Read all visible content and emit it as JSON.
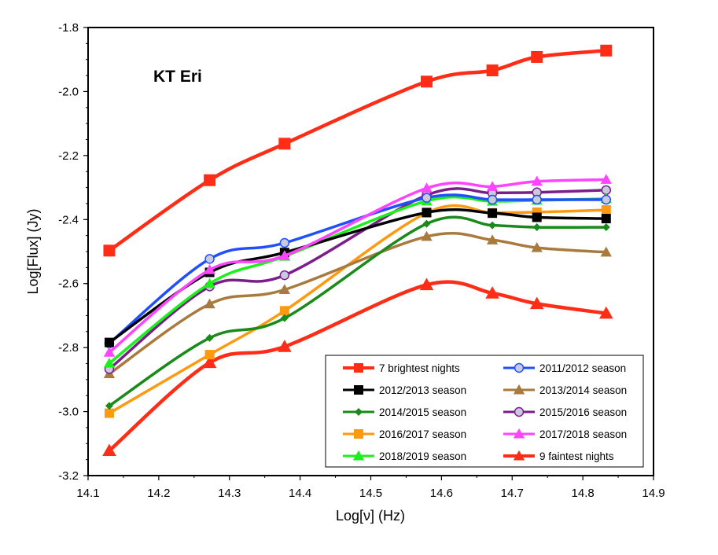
{
  "chart_data": {
    "type": "line",
    "title": "KT Eri",
    "xlabel": "Log[ν] (Hz)",
    "ylabel": "Log[Flux] (Jy)",
    "xlim": [
      14.1,
      14.9
    ],
    "ylim": [
      -3.2,
      -1.8
    ],
    "xticks": [
      "14.1",
      "14.2",
      "14.3",
      "14.4",
      "14.5",
      "14.6",
      "14.7",
      "14.8",
      "14.9"
    ],
    "yticks": [
      "-1.8",
      "-2.0",
      "-2.2",
      "-2.4",
      "-2.6",
      "-2.8",
      "-3.0",
      "-3.2"
    ],
    "x": [
      14.13,
      14.272,
      14.378,
      14.579,
      14.672,
      14.735,
      14.833
    ],
    "legend_position": "bottom-right",
    "series": [
      {
        "name": "7 brightest nights",
        "color": "#ff2d16",
        "marker": "square",
        "values": [
          -2.497,
          -2.277,
          -2.163,
          -1.969,
          -1.934,
          -1.892,
          -1.872
        ]
      },
      {
        "name": "2011/2012 season",
        "color": "#1f4fff",
        "marker": "circle",
        "values": [
          -2.787,
          -2.523,
          -2.473,
          -2.332,
          -2.338,
          -2.338,
          -2.338
        ]
      },
      {
        "name": "2012/2013 season",
        "color": "#000000",
        "marker": "square",
        "values": [
          -2.784,
          -2.565,
          -2.503,
          -2.378,
          -2.38,
          -2.393,
          -2.397
        ]
      },
      {
        "name": "2013/2014 season",
        "color": "#a97a3e",
        "marker": "triangle",
        "values": [
          -2.882,
          -2.664,
          -2.619,
          -2.453,
          -2.464,
          -2.488,
          -2.502
        ]
      },
      {
        "name": "2014/2015 season",
        "color": "#1a8a1a",
        "marker": "diamond",
        "values": [
          -2.982,
          -2.77,
          -2.708,
          -2.413,
          -2.418,
          -2.424,
          -2.424
        ]
      },
      {
        "name": "2015/2016 season",
        "color": "#7a1f8a",
        "marker": "circle",
        "values": [
          -2.867,
          -2.609,
          -2.574,
          -2.324,
          -2.317,
          -2.315,
          -2.308
        ]
      },
      {
        "name": "2016/2017 season",
        "color": "#ff9a10",
        "marker": "square",
        "values": [
          -3.005,
          -2.822,
          -2.685,
          -2.379,
          -2.379,
          -2.377,
          -2.37
        ]
      },
      {
        "name": "2017/2018 season",
        "color": "#ff44ff",
        "marker": "triangle",
        "values": [
          -2.815,
          -2.557,
          -2.513,
          -2.302,
          -2.297,
          -2.281,
          -2.275
        ]
      },
      {
        "name": "2018/2019 season",
        "color": "#1cf01c",
        "marker": "triangle",
        "values": [
          -2.849,
          -2.6,
          -2.515,
          -2.342,
          -2.343,
          -2.34,
          -2.335
        ]
      },
      {
        "name": "9 faintest nights",
        "color": "#ff2d16",
        "marker": "triangle",
        "values": [
          -3.122,
          -2.847,
          -2.797,
          -2.604,
          -2.63,
          -2.663,
          -2.693
        ]
      }
    ]
  }
}
